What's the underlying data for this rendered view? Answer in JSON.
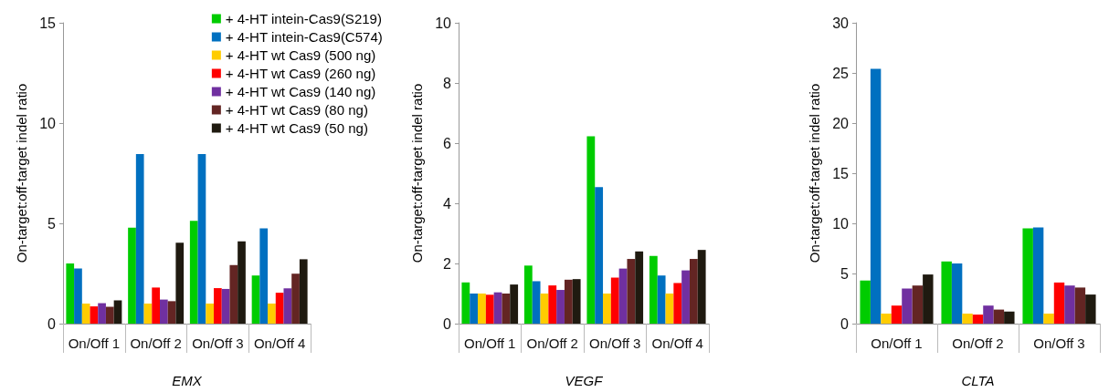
{
  "chart_data": [
    {
      "type": "bar",
      "xlabel": "EMX",
      "ylabel": "On-target:off-target indel ratio",
      "categories": [
        "On/Off 1",
        "On/Off 2",
        "On/Off 3",
        "On/Off 4"
      ],
      "ylim": [
        0,
        15
      ],
      "yticks": [
        0,
        5,
        10,
        15
      ],
      "grid": false,
      "legend": "top right",
      "series": [
        {
          "name": "+ 4-HT intein-Cas9(S219)",
          "color": "#00cc00",
          "values": [
            3.0,
            4.78,
            5.12,
            2.4
          ]
        },
        {
          "name": "+ 4-HT intein-Cas9(C574)",
          "color": "#0070c0",
          "values": [
            2.75,
            8.46,
            8.46,
            4.75
          ]
        },
        {
          "name": "+ 4-HT wt Cas9 (500 ng)",
          "color": "#ffcc00",
          "values": [
            1.0,
            1.0,
            1.0,
            1.0
          ]
        },
        {
          "name": "+ 4-HT wt Cas9 (260 ng)",
          "color": "#ff0000",
          "values": [
            0.86,
            1.8,
            1.77,
            1.54
          ]
        },
        {
          "name": "+ 4-HT wt Cas9 (140 ng)",
          "color": "#7030a0",
          "values": [
            1.02,
            1.2,
            1.73,
            1.76
          ]
        },
        {
          "name": "+ 4-HT wt Cas9 (80 ng)",
          "color": "#632523",
          "values": [
            0.84,
            1.12,
            2.92,
            2.49
          ]
        },
        {
          "name": "+ 4-HT wt Cas9 (50 ng)",
          "color": "#1f1a10",
          "values": [
            1.16,
            4.03,
            4.1,
            3.21
          ]
        }
      ]
    },
    {
      "type": "bar",
      "xlabel": "VEGF",
      "ylabel": "On-target:off-target indel ratio",
      "categories": [
        "On/Off 1",
        "On/Off 2",
        "On/Off 3",
        "On/Off 4"
      ],
      "ylim": [
        0,
        10
      ],
      "yticks": [
        0,
        2,
        4,
        6,
        8,
        10
      ],
      "grid": false,
      "series": [
        {
          "color": "#00cc00",
          "values": [
            1.37,
            1.93,
            6.23,
            2.25
          ]
        },
        {
          "color": "#0070c0",
          "values": [
            1.0,
            1.41,
            4.54,
            1.6
          ]
        },
        {
          "color": "#ffcc00",
          "values": [
            1.0,
            1.0,
            1.0,
            1.0
          ]
        },
        {
          "color": "#ff0000",
          "values": [
            0.96,
            1.27,
            1.53,
            1.35
          ]
        },
        {
          "color": "#7030a0",
          "values": [
            1.04,
            1.12,
            1.83,
            1.77
          ]
        },
        {
          "color": "#632523",
          "values": [
            1.0,
            1.46,
            2.15,
            2.15
          ]
        },
        {
          "color": "#1f1a10",
          "values": [
            1.3,
            1.48,
            2.4,
            2.45
          ]
        }
      ]
    },
    {
      "type": "bar",
      "xlabel": "CLTA",
      "ylabel": "On-target:off-target indel ratio",
      "categories": [
        "On/Off 1",
        "On/Off 2",
        "On/Off 3"
      ],
      "ylim": [
        0,
        30
      ],
      "yticks": [
        0,
        5,
        10,
        15,
        20,
        25,
        30
      ],
      "grid": false,
      "series": [
        {
          "color": "#00cc00",
          "values": [
            4.3,
            6.2,
            9.5
          ]
        },
        {
          "color": "#0070c0",
          "values": [
            25.4,
            6.0,
            9.6
          ]
        },
        {
          "color": "#ffcc00",
          "values": [
            1.0,
            1.0,
            1.0
          ]
        },
        {
          "color": "#ff0000",
          "values": [
            1.8,
            0.9,
            4.1
          ]
        },
        {
          "color": "#7030a0",
          "values": [
            3.5,
            1.8,
            3.8
          ]
        },
        {
          "color": "#632523",
          "values": [
            3.8,
            1.4,
            3.6
          ]
        },
        {
          "color": "#1f1a10",
          "values": [
            4.9,
            1.2,
            2.9
          ]
        }
      ]
    }
  ]
}
